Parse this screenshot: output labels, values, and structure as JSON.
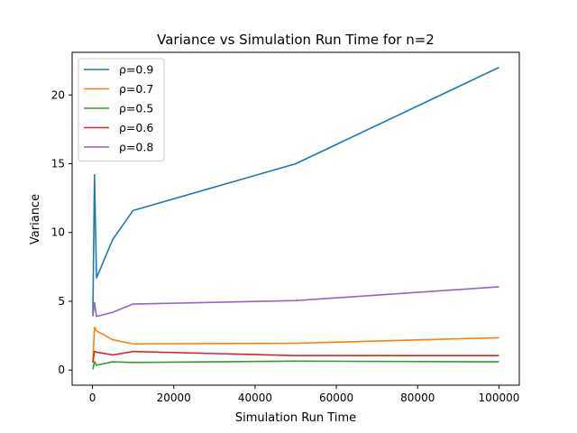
{
  "chart_data": {
    "type": "line",
    "title": "Variance vs Simulation Run Time for n=2",
    "xlabel": "Simulation Run Time",
    "ylabel": "Variance",
    "xlim": [
      -5000,
      105000
    ],
    "ylim": [
      -1.1,
      23.1
    ],
    "xticks": [
      0,
      20000,
      40000,
      60000,
      80000,
      100000
    ],
    "yticks": [
      0,
      5,
      10,
      15,
      20
    ],
    "grid": false,
    "legend_position": "top-left",
    "x": [
      100,
      500,
      1000,
      5000,
      10000,
      50000,
      100000
    ],
    "series": [
      {
        "name": "ρ=0.9",
        "color": "#1f77b4",
        "values": [
          4.0,
          14.2,
          6.7,
          9.5,
          11.6,
          15.0,
          22.0
        ]
      },
      {
        "name": "ρ=0.7",
        "color": "#ff7f0e",
        "values": [
          0.55,
          3.1,
          2.85,
          2.2,
          1.9,
          1.95,
          2.35
        ]
      },
      {
        "name": "ρ=0.5",
        "color": "#2ca02c",
        "values": [
          0.05,
          0.6,
          0.35,
          0.6,
          0.55,
          0.65,
          0.6
        ]
      },
      {
        "name": "ρ=0.6",
        "color": "#d62728",
        "values": [
          0.55,
          1.35,
          1.3,
          1.1,
          1.35,
          1.05,
          1.05
        ]
      },
      {
        "name": "ρ=0.8",
        "color": "#9467bd",
        "values": [
          3.9,
          4.9,
          3.9,
          4.2,
          4.8,
          5.05,
          6.05
        ]
      }
    ]
  }
}
